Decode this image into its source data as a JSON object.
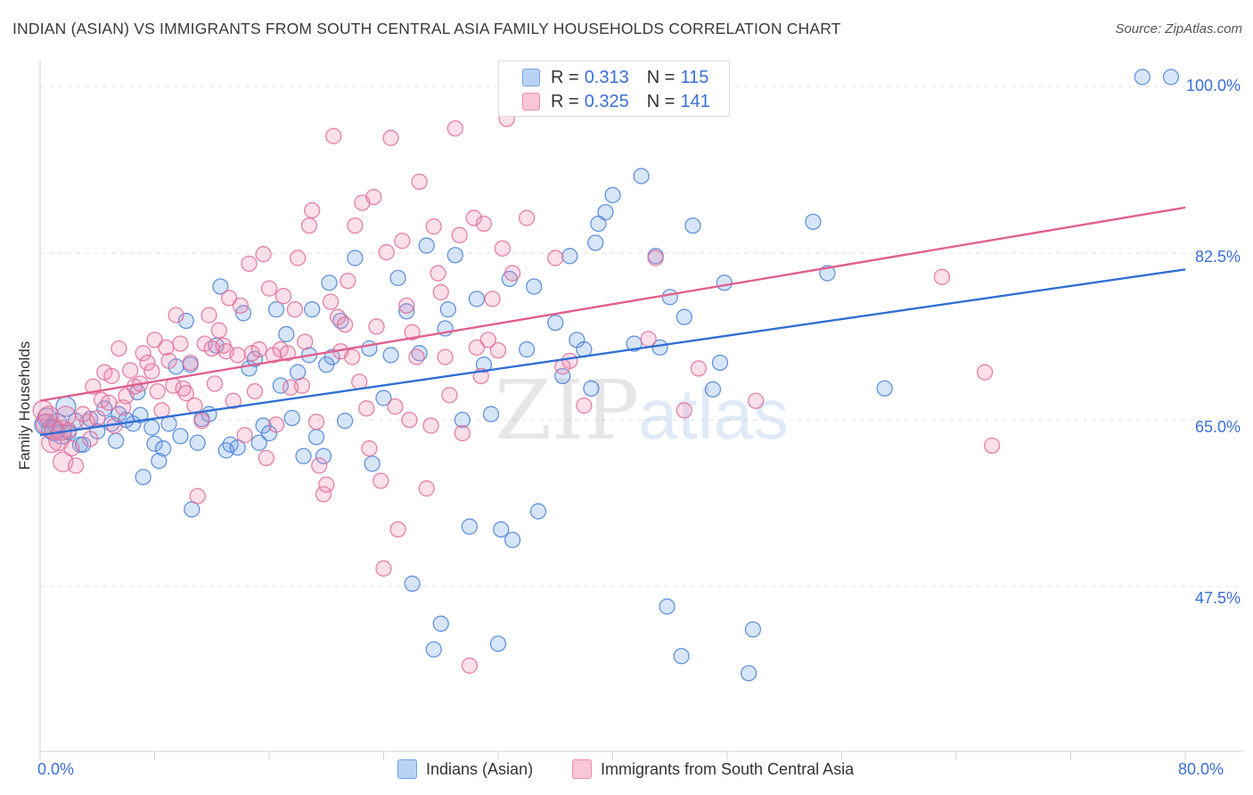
{
  "header": {
    "title": "INDIAN (ASIAN) VS IMMIGRANTS FROM SOUTH CENTRAL ASIA FAMILY HOUSEHOLDS CORRELATION CHART",
    "source": "Source: ZipAtlas.com"
  },
  "watermark": {
    "zip": "ZIP",
    "atlas": "atlas"
  },
  "legend_top": {
    "rows": [
      {
        "r_label": "R =",
        "r_value": "0.313",
        "n_label": "N =",
        "n_value": "115",
        "color": "#6fa0e6"
      },
      {
        "r_label": "R =",
        "r_value": "0.325",
        "n_label": "N =",
        "n_value": "141",
        "color": "#f08bb0"
      }
    ]
  },
  "legend_bottom": {
    "items": [
      {
        "label": "Indians (Asian)",
        "color": "#6fa0e6"
      },
      {
        "label": "Immigrants from South Central Asia",
        "color": "#f08bb0"
      }
    ]
  },
  "axes": {
    "x_min_label": "0.0%",
    "x_max_label": "80.0%",
    "y_tick_labels": [
      "100.0%",
      "82.5%",
      "65.0%",
      "47.5%"
    ]
  },
  "chart_data": {
    "type": "scatter",
    "title": "INDIAN (ASIAN) VS IMMIGRANTS FROM SOUTH CENTRAL ASIA FAMILY HOUSEHOLDS CORRELATION CHART",
    "xlabel": "",
    "ylabel": "Family Households",
    "xlim": [
      0,
      80
    ],
    "ylim": [
      30.2,
      101.6
    ],
    "y_ticks": [
      47.5,
      65.0,
      82.5,
      100.0
    ],
    "x_ticks": [
      0,
      8,
      16,
      24,
      32,
      40,
      48,
      56,
      64,
      72,
      80
    ],
    "grid": true,
    "legend_position": "top-center",
    "series": [
      {
        "name": "Indians (Asian)",
        "color": "#6fa0e6",
        "stroke": "#4a82d8",
        "trend": {
          "x0": 0,
          "y0": 63.4,
          "x1": 80,
          "y1": 80.8,
          "color": "#2f6fd4"
        },
        "points": [
          [
            0.3,
            64.5
          ],
          [
            0.5,
            65.2
          ],
          [
            0.8,
            64.0
          ],
          [
            1.0,
            63.8
          ],
          [
            1.2,
            64.6
          ],
          [
            1.5,
            63.5
          ],
          [
            1.8,
            66.4
          ],
          [
            2.0,
            63.7
          ],
          [
            2.5,
            64.9
          ],
          [
            2.8,
            62.4
          ],
          [
            3.0,
            62.4
          ],
          [
            3.5,
            65.1
          ],
          [
            4.0,
            63.8
          ],
          [
            4.5,
            66.2
          ],
          [
            5.0,
            64.6
          ],
          [
            5.3,
            62.8
          ],
          [
            5.5,
            65.6
          ],
          [
            6.0,
            65.0
          ],
          [
            6.5,
            64.6
          ],
          [
            6.8,
            67.9
          ],
          [
            7.0,
            65.5
          ],
          [
            7.2,
            59.0
          ],
          [
            7.8,
            64.2
          ],
          [
            8.0,
            62.5
          ],
          [
            8.3,
            60.7
          ],
          [
            8.6,
            62.0
          ],
          [
            9.0,
            64.6
          ],
          [
            9.5,
            70.6
          ],
          [
            9.8,
            63.3
          ],
          [
            10.2,
            75.4
          ],
          [
            10.5,
            70.8
          ],
          [
            10.6,
            55.6
          ],
          [
            11.0,
            62.6
          ],
          [
            11.3,
            65.1
          ],
          [
            11.8,
            65.6
          ],
          [
            12.3,
            72.8
          ],
          [
            12.6,
            79.0
          ],
          [
            13.0,
            61.8
          ],
          [
            13.3,
            62.4
          ],
          [
            13.8,
            62.1
          ],
          [
            14.2,
            76.2
          ],
          [
            14.6,
            70.4
          ],
          [
            15.0,
            71.4
          ],
          [
            15.3,
            62.6
          ],
          [
            15.6,
            64.4
          ],
          [
            16.0,
            63.6
          ],
          [
            16.5,
            76.6
          ],
          [
            16.8,
            68.6
          ],
          [
            17.2,
            74.0
          ],
          [
            17.6,
            65.2
          ],
          [
            18.0,
            70.0
          ],
          [
            18.4,
            61.2
          ],
          [
            18.8,
            71.8
          ],
          [
            19.0,
            76.6
          ],
          [
            19.3,
            63.2
          ],
          [
            19.8,
            61.2
          ],
          [
            20.0,
            70.8
          ],
          [
            20.2,
            79.4
          ],
          [
            20.4,
            71.6
          ],
          [
            21.0,
            75.4
          ],
          [
            21.3,
            64.9
          ],
          [
            22.0,
            82.0
          ],
          [
            23.0,
            72.5
          ],
          [
            23.2,
            60.4
          ],
          [
            24.0,
            67.3
          ],
          [
            24.5,
            71.8
          ],
          [
            25.0,
            79.9
          ],
          [
            25.6,
            76.4
          ],
          [
            26.0,
            47.8
          ],
          [
            26.5,
            72.0
          ],
          [
            27.0,
            83.3
          ],
          [
            27.5,
            40.9
          ],
          [
            28.0,
            43.6
          ],
          [
            28.3,
            74.6
          ],
          [
            28.5,
            76.6
          ],
          [
            29.0,
            82.3
          ],
          [
            29.5,
            65.0
          ],
          [
            30.0,
            53.8
          ],
          [
            30.5,
            77.7
          ],
          [
            31.0,
            70.8
          ],
          [
            31.5,
            65.6
          ],
          [
            32.0,
            41.5
          ],
          [
            32.2,
            53.5
          ],
          [
            32.8,
            79.8
          ],
          [
            33.0,
            52.4
          ],
          [
            34.0,
            72.4
          ],
          [
            34.5,
            79.0
          ],
          [
            34.8,
            55.4
          ],
          [
            36.0,
            75.2
          ],
          [
            36.5,
            69.6
          ],
          [
            37.0,
            82.2
          ],
          [
            37.5,
            73.4
          ],
          [
            38.0,
            72.4
          ],
          [
            38.5,
            68.3
          ],
          [
            38.8,
            83.6
          ],
          [
            39.0,
            85.6
          ],
          [
            39.5,
            86.8
          ],
          [
            40.0,
            88.6
          ],
          [
            41.5,
            73.0
          ],
          [
            42.0,
            90.6
          ],
          [
            43.0,
            82.2
          ],
          [
            43.3,
            72.6
          ],
          [
            43.8,
            45.4
          ],
          [
            44.0,
            77.9
          ],
          [
            44.8,
            40.2
          ],
          [
            45.0,
            75.8
          ],
          [
            45.6,
            85.4
          ],
          [
            47.0,
            68.2
          ],
          [
            47.5,
            71.0
          ],
          [
            47.8,
            79.4
          ],
          [
            49.5,
            38.4
          ],
          [
            49.8,
            43.0
          ],
          [
            54.0,
            85.8
          ],
          [
            55.0,
            80.4
          ],
          [
            59.0,
            68.3
          ],
          [
            77.0,
            101.0
          ],
          [
            79.0,
            101.0
          ]
        ]
      },
      {
        "name": "Immigrants from South Central Asia",
        "color": "#f08bb0",
        "stroke": "#e06d98",
        "trend": {
          "x0": 0,
          "y0": 67.0,
          "x1": 80,
          "y1": 87.3,
          "color": "#e0608e"
        },
        "points": [
          [
            0.2,
            66.0
          ],
          [
            0.4,
            64.6
          ],
          [
            0.6,
            65.4
          ],
          [
            0.8,
            62.6
          ],
          [
            1.0,
            64.0
          ],
          [
            1.3,
            62.8
          ],
          [
            1.5,
            63.9
          ],
          [
            1.6,
            60.6
          ],
          [
            1.8,
            65.4
          ],
          [
            2.0,
            63.9
          ],
          [
            2.2,
            62.0
          ],
          [
            2.5,
            60.2
          ],
          [
            3.0,
            65.6
          ],
          [
            3.3,
            64.8
          ],
          [
            3.5,
            63.0
          ],
          [
            3.7,
            68.5
          ],
          [
            4.0,
            65.2
          ],
          [
            4.3,
            67.1
          ],
          [
            4.5,
            70.0
          ],
          [
            4.8,
            66.8
          ],
          [
            5.0,
            69.6
          ],
          [
            5.2,
            64.4
          ],
          [
            5.5,
            72.5
          ],
          [
            5.8,
            66.3
          ],
          [
            6.0,
            67.5
          ],
          [
            6.3,
            70.2
          ],
          [
            6.6,
            68.5
          ],
          [
            7.0,
            68.8
          ],
          [
            7.2,
            72.0
          ],
          [
            7.5,
            71.0
          ],
          [
            7.8,
            70.1
          ],
          [
            8.0,
            73.4
          ],
          [
            8.2,
            68.0
          ],
          [
            8.5,
            66.0
          ],
          [
            8.8,
            72.6
          ],
          [
            9.0,
            71.2
          ],
          [
            9.3,
            68.6
          ],
          [
            9.5,
            76.0
          ],
          [
            9.8,
            73.0
          ],
          [
            10.0,
            68.3
          ],
          [
            10.2,
            67.8
          ],
          [
            10.5,
            71.0
          ],
          [
            10.8,
            66.5
          ],
          [
            11.0,
            57.0
          ],
          [
            11.3,
            64.9
          ],
          [
            11.5,
            73.0
          ],
          [
            11.8,
            76.0
          ],
          [
            12.0,
            72.5
          ],
          [
            12.2,
            68.8
          ],
          [
            12.5,
            74.4
          ],
          [
            12.8,
            72.8
          ],
          [
            13.0,
            72.2
          ],
          [
            13.2,
            77.8
          ],
          [
            13.5,
            67.0
          ],
          [
            13.8,
            71.8
          ],
          [
            14.0,
            77.0
          ],
          [
            14.3,
            63.4
          ],
          [
            14.6,
            81.4
          ],
          [
            14.8,
            72.0
          ],
          [
            15.0,
            68.0
          ],
          [
            15.3,
            72.4
          ],
          [
            15.6,
            82.4
          ],
          [
            15.8,
            61.0
          ],
          [
            16.0,
            78.8
          ],
          [
            16.3,
            71.8
          ],
          [
            16.5,
            64.5
          ],
          [
            16.8,
            72.4
          ],
          [
            17.0,
            78.0
          ],
          [
            17.3,
            72.0
          ],
          [
            17.5,
            68.4
          ],
          [
            17.8,
            76.6
          ],
          [
            18.0,
            82.0
          ],
          [
            18.3,
            68.6
          ],
          [
            18.5,
            73.2
          ],
          [
            18.8,
            85.4
          ],
          [
            19.0,
            87.0
          ],
          [
            19.3,
            64.8
          ],
          [
            19.5,
            60.2
          ],
          [
            19.8,
            57.2
          ],
          [
            20.0,
            58.2
          ],
          [
            20.3,
            77.4
          ],
          [
            20.5,
            94.8
          ],
          [
            20.8,
            75.8
          ],
          [
            21.0,
            72.2
          ],
          [
            21.3,
            75.0
          ],
          [
            21.5,
            79.6
          ],
          [
            21.8,
            71.6
          ],
          [
            22.0,
            85.4
          ],
          [
            22.3,
            69.0
          ],
          [
            22.5,
            87.8
          ],
          [
            22.8,
            66.2
          ],
          [
            23.0,
            62.0
          ],
          [
            23.3,
            88.4
          ],
          [
            23.5,
            74.8
          ],
          [
            23.8,
            58.6
          ],
          [
            24.0,
            49.4
          ],
          [
            24.2,
            82.6
          ],
          [
            24.5,
            94.6
          ],
          [
            24.8,
            66.4
          ],
          [
            25.0,
            53.5
          ],
          [
            25.3,
            83.8
          ],
          [
            25.6,
            77.0
          ],
          [
            25.8,
            65.0
          ],
          [
            26.0,
            74.2
          ],
          [
            26.3,
            71.6
          ],
          [
            26.5,
            90.0
          ],
          [
            27.0,
            57.8
          ],
          [
            27.3,
            64.4
          ],
          [
            27.5,
            85.3
          ],
          [
            27.8,
            80.4
          ],
          [
            28.0,
            78.4
          ],
          [
            28.3,
            71.6
          ],
          [
            28.6,
            67.6
          ],
          [
            29.0,
            95.6
          ],
          [
            29.3,
            84.4
          ],
          [
            29.5,
            63.6
          ],
          [
            30.0,
            39.2
          ],
          [
            30.3,
            86.2
          ],
          [
            30.5,
            72.6
          ],
          [
            30.8,
            69.6
          ],
          [
            31.0,
            85.6
          ],
          [
            31.3,
            73.4
          ],
          [
            31.6,
            77.7
          ],
          [
            32.0,
            72.3
          ],
          [
            32.3,
            83.0
          ],
          [
            32.6,
            96.6
          ],
          [
            33.0,
            80.4
          ],
          [
            34.0,
            86.2
          ],
          [
            36.0,
            82.0
          ],
          [
            36.5,
            70.6
          ],
          [
            37.0,
            71.2
          ],
          [
            38.0,
            66.5
          ],
          [
            42.5,
            73.5
          ],
          [
            43.0,
            82.0
          ],
          [
            45.0,
            66.0
          ],
          [
            46.0,
            70.4
          ],
          [
            50.0,
            67.0
          ],
          [
            63.0,
            80.0
          ],
          [
            66.0,
            70.0
          ],
          [
            66.5,
            62.3
          ]
        ]
      }
    ]
  }
}
